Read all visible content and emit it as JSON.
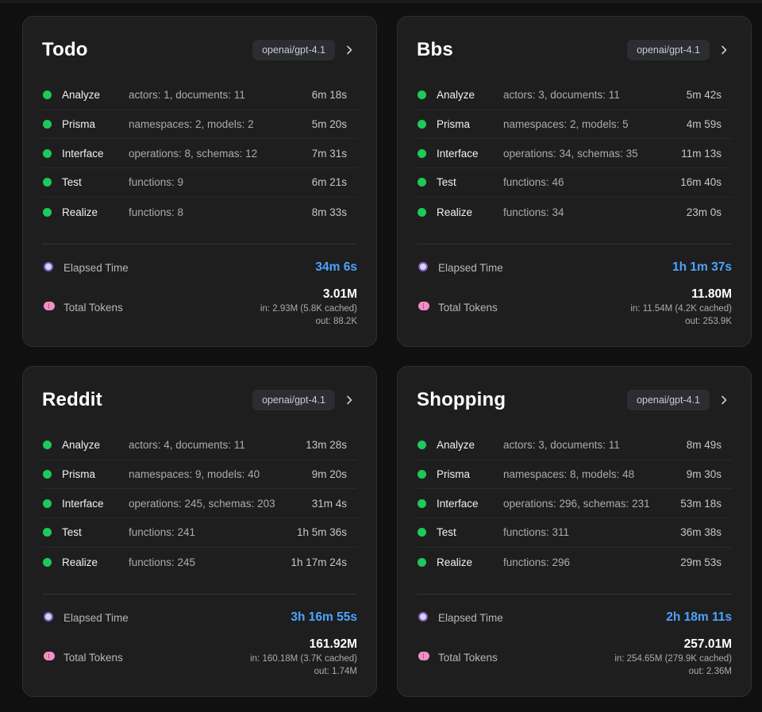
{
  "labels": {
    "elapsed": "Elapsed Time",
    "tokens": "Total Tokens"
  },
  "colors": {
    "status_done": "#1ec95a",
    "accent": "#4ea3ff"
  },
  "icons": {
    "elapsed": "alarm-clock-icon",
    "tokens": "brain-icon",
    "open": "chevron-right-icon"
  },
  "cards": [
    {
      "title": "Todo",
      "model": "openai/gpt-4.1",
      "phases": [
        {
          "name": "Analyze",
          "info": "actors: 1, documents: 11",
          "time": "6m 18s"
        },
        {
          "name": "Prisma",
          "info": "namespaces: 2, models: 2",
          "time": "5m 20s"
        },
        {
          "name": "Interface",
          "info": "operations: 8, schemas: 12",
          "time": "7m 31s"
        },
        {
          "name": "Test",
          "info": "functions: 9",
          "time": "6m 21s"
        },
        {
          "name": "Realize",
          "info": "functions: 8",
          "time": "8m 33s"
        }
      ],
      "elapsed": "34m 6s",
      "tokens_total": "3.01M",
      "tokens_in": "in: 2.93M (5.8K cached)",
      "tokens_out": "out: 88.2K"
    },
    {
      "title": "Bbs",
      "model": "openai/gpt-4.1",
      "phases": [
        {
          "name": "Analyze",
          "info": "actors: 3, documents: 11",
          "time": "5m 42s"
        },
        {
          "name": "Prisma",
          "info": "namespaces: 2, models: 5",
          "time": "4m 59s"
        },
        {
          "name": "Interface",
          "info": "operations: 34, schemas: 35",
          "time": "11m 13s"
        },
        {
          "name": "Test",
          "info": "functions: 46",
          "time": "16m 40s"
        },
        {
          "name": "Realize",
          "info": "functions: 34",
          "time": "23m 0s"
        }
      ],
      "elapsed": "1h 1m 37s",
      "tokens_total": "11.80M",
      "tokens_in": "in: 11.54M (4.2K cached)",
      "tokens_out": "out: 253.9K"
    },
    {
      "title": "Reddit",
      "model": "openai/gpt-4.1",
      "phases": [
        {
          "name": "Analyze",
          "info": "actors: 4, documents: 11",
          "time": "13m 28s"
        },
        {
          "name": "Prisma",
          "info": "namespaces: 9, models: 40",
          "time": "9m 20s"
        },
        {
          "name": "Interface",
          "info": "operations: 245, schemas: 203",
          "time": "31m 4s"
        },
        {
          "name": "Test",
          "info": "functions: 241",
          "time": "1h 5m 36s"
        },
        {
          "name": "Realize",
          "info": "functions: 245",
          "time": "1h 17m 24s"
        }
      ],
      "elapsed": "3h 16m 55s",
      "tokens_total": "161.92M",
      "tokens_in": "in: 160.18M (3.7K cached)",
      "tokens_out": "out: 1.74M"
    },
    {
      "title": "Shopping",
      "model": "openai/gpt-4.1",
      "phases": [
        {
          "name": "Analyze",
          "info": "actors: 3, documents: 11",
          "time": "8m 49s"
        },
        {
          "name": "Prisma",
          "info": "namespaces: 8, models: 48",
          "time": "9m 30s"
        },
        {
          "name": "Interface",
          "info": "operations: 296, schemas: 231",
          "time": "53m 18s"
        },
        {
          "name": "Test",
          "info": "functions: 311",
          "time": "36m 38s"
        },
        {
          "name": "Realize",
          "info": "functions: 296",
          "time": "29m 53s"
        }
      ],
      "elapsed": "2h 18m 11s",
      "tokens_total": "257.01M",
      "tokens_in": "in: 254.65M (279.9K cached)",
      "tokens_out": "out: 2.36M"
    }
  ]
}
